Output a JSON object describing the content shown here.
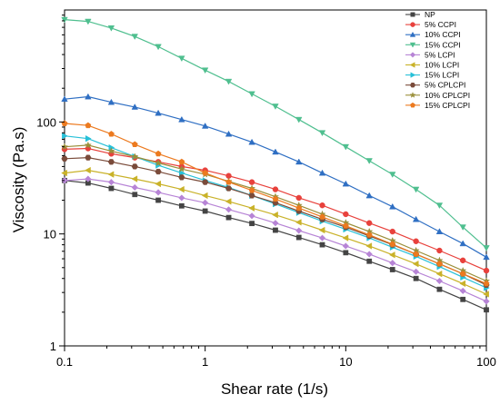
{
  "chart_data": {
    "type": "line",
    "xlabel": "Shear rate (1/s)",
    "ylabel": "Viscosity (Pa.s)",
    "x_scale": "log",
    "y_scale": "log",
    "xlim": [
      0.1,
      100
    ],
    "ylim": [
      1,
      1000
    ],
    "x_ticks": [
      0.1,
      1,
      10,
      100
    ],
    "x_tick_labels": [
      "0.1",
      "1",
      "10",
      "100"
    ],
    "y_ticks": [
      1,
      10,
      100
    ],
    "y_tick_labels": [
      "1",
      "10",
      "100"
    ],
    "grid": false,
    "legend_position": "top-right",
    "x": [
      0.1,
      0.147,
      0.215,
      0.316,
      0.464,
      0.681,
      1,
      1.47,
      2.15,
      3.16,
      4.64,
      6.81,
      10,
      14.7,
      21.5,
      31.6,
      46.4,
      68.1,
      100
    ],
    "series": [
      {
        "name": "NP",
        "color": "#444444",
        "marker": "square",
        "values": [
          30,
          28.5,
          25.5,
          22.5,
          20,
          17.8,
          16,
          14,
          12.4,
          10.8,
          9.3,
          8.0,
          6.8,
          5.7,
          4.8,
          4.0,
          3.2,
          2.6,
          2.1
        ]
      },
      {
        "name": "5% CCPI",
        "color": "#e8413c",
        "marker": "circle",
        "values": [
          57,
          58,
          52,
          48,
          44,
          40,
          37,
          33,
          29,
          25,
          21,
          18,
          15,
          12.5,
          10.5,
          8.6,
          7.1,
          5.8,
          4.7
        ]
      },
      {
        "name": "10% CCPI",
        "color": "#2f6fc3",
        "marker": "triangle-up",
        "values": [
          160,
          168,
          150,
          136,
          120,
          105,
          92,
          78,
          66,
          54,
          44,
          35,
          28,
          22,
          17.5,
          13.5,
          10.5,
          8.2,
          6.2
        ]
      },
      {
        "name": "15% CCPI",
        "color": "#4fbf8f",
        "marker": "triangle-down",
        "values": [
          820,
          790,
          690,
          580,
          470,
          370,
          290,
          230,
          178,
          138,
          105,
          80,
          60,
          45,
          34,
          25,
          18,
          11.5,
          7.5
        ]
      },
      {
        "name": "5% LCPI",
        "color": "#b784d6",
        "marker": "diamond",
        "values": [
          30,
          31,
          29,
          26,
          23.5,
          21,
          19,
          16.5,
          14.5,
          12.5,
          10.7,
          9.2,
          7.8,
          6.6,
          5.5,
          4.6,
          3.8,
          3.1,
          2.5
        ]
      },
      {
        "name": "10% LCPI",
        "color": "#c9b229",
        "marker": "triangle-left",
        "values": [
          35,
          37,
          34,
          31,
          28,
          25,
          22,
          19.5,
          17,
          14.8,
          12.7,
          10.8,
          9.2,
          7.8,
          6.5,
          5.4,
          4.4,
          3.6,
          2.9
        ]
      },
      {
        "name": "15% LCPI",
        "color": "#27c0d8",
        "marker": "triangle-right",
        "values": [
          75,
          71,
          59,
          49,
          41,
          35,
          30,
          26,
          22,
          18.5,
          15.5,
          13,
          11,
          9.2,
          7.6,
          6.3,
          5.1,
          4.1,
          3.3
        ]
      },
      {
        "name": "5% CPLCPI",
        "color": "#7a4b3a",
        "marker": "hexagon",
        "values": [
          47,
          48,
          44,
          40,
          36,
          32,
          29,
          25.5,
          22,
          19,
          16,
          13.5,
          11.5,
          9.6,
          8.0,
          6.6,
          5.4,
          4.4,
          3.5
        ]
      },
      {
        "name": "10% CPLCPI",
        "color": "#9a8f3a",
        "marker": "star",
        "values": [
          60,
          62,
          55,
          49,
          43,
          38,
          34,
          29.5,
          25.5,
          21.5,
          18,
          15,
          12.6,
          10.5,
          8.7,
          7.1,
          5.8,
          4.7,
          3.8
        ]
      },
      {
        "name": "15% CPLCPI",
        "color": "#ec7a1f",
        "marker": "pentagon",
        "values": [
          97,
          93,
          78,
          63,
          52,
          44,
          35,
          29,
          24.5,
          20.5,
          17,
          14.2,
          11.8,
          9.8,
          8.1,
          6.6,
          5.4,
          4.4,
          3.6
        ]
      }
    ]
  }
}
